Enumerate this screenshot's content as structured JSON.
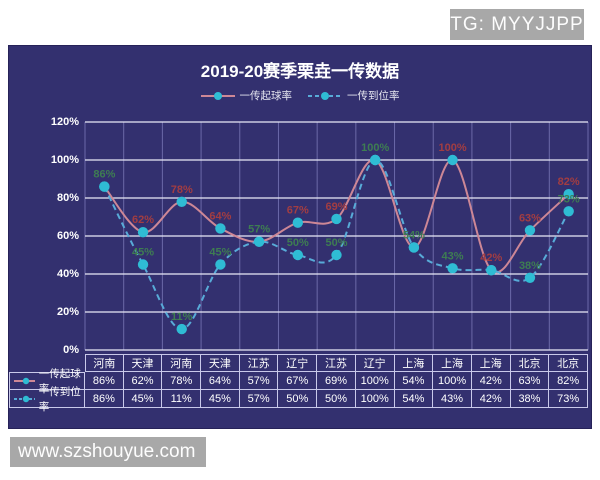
{
  "badge": {
    "text": "TG: MYYJJPP"
  },
  "watermark": {
    "text": "www.szshouyue.com"
  },
  "chart": {
    "colors": {
      "panel_bg": "#33306F",
      "h_grid": "#E9E9F6",
      "v_grid": "#6B69A8",
      "marker": "#2FBCD4",
      "series1_line": "#CD8796",
      "series2_line": "#58ABD8",
      "series1_label": "#A23D42",
      "series2_label": "#3E7D52",
      "table_border": "#C9C9EA",
      "text": "#FFFFFF",
      "badge_bg": "#A8A8A8"
    }
  },
  "chart_data": {
    "type": "line",
    "title": "2019-20赛季栗垚一传数据",
    "categories": [
      "河南",
      "天津",
      "河南",
      "天津",
      "江苏",
      "辽宁",
      "江苏",
      "辽宁",
      "上海",
      "上海",
      "上海",
      "北京",
      "北京"
    ],
    "series": [
      {
        "name": "一传起球率",
        "values": [
          86,
          62,
          78,
          64,
          57,
          67,
          69,
          100,
          54,
          100,
          42,
          63,
          82
        ],
        "labels": [
          null,
          "62%",
          "78%",
          "64%",
          null,
          "67%",
          "69%",
          null,
          null,
          "100%",
          "42%",
          "63%",
          "82%"
        ],
        "line_style": "solid"
      },
      {
        "name": "一传到位率",
        "values": [
          86,
          45,
          11,
          45,
          57,
          50,
          50,
          100,
          54,
          43,
          42,
          38,
          73
        ],
        "labels": [
          "86%",
          "45%",
          "11%",
          "45%",
          "57%",
          "50%",
          "50%",
          "100%",
          "54%",
          "43%",
          null,
          "38%",
          "73%"
        ],
        "line_style": "dashed"
      }
    ],
    "yticks": [
      "120%",
      "100%",
      "80%",
      "60%",
      "40%",
      "20%",
      "0%"
    ],
    "ylim": [
      0,
      120
    ],
    "grid": true,
    "legend_position": "top"
  }
}
